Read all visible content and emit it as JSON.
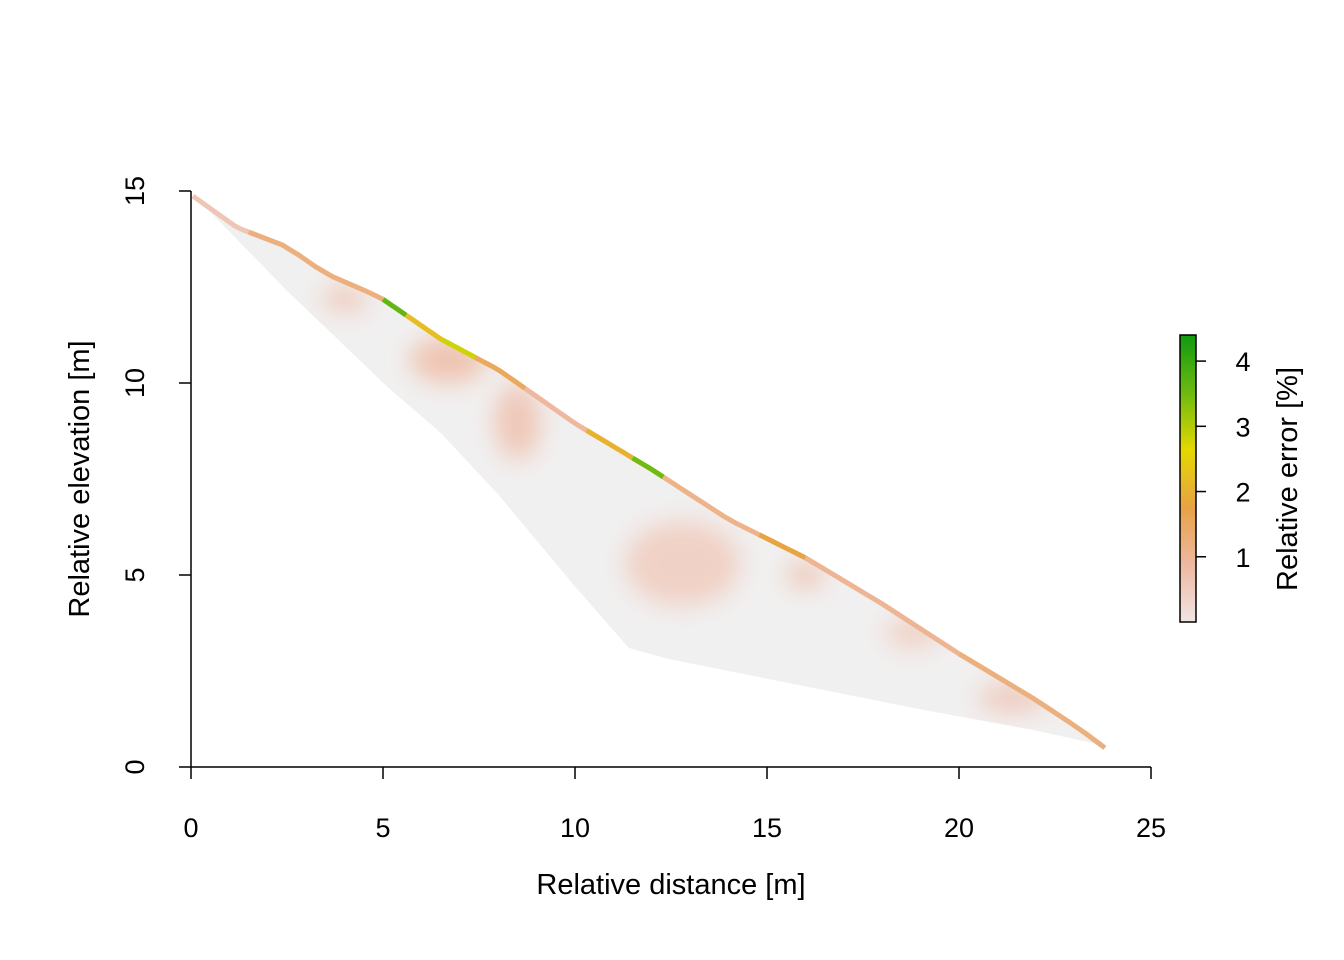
{
  "chart_data": {
    "type": "heatmap",
    "xlabel": "Relative distance [m]",
    "ylabel": "Relative elevation [m]",
    "xlim": [
      0,
      25
    ],
    "ylim": [
      0,
      15
    ],
    "x_ticks": [
      "0",
      "5",
      "10",
      "15",
      "20",
      "25"
    ],
    "y_ticks": [
      "0",
      "5",
      "10",
      "15"
    ],
    "colorbar": {
      "label": "Relative error [%]",
      "range": [
        0,
        4.4
      ],
      "ticks": [
        "1",
        "2",
        "3",
        "4"
      ],
      "colors": [
        "#f2e4e4",
        "#eeb8a0",
        "#e8a244",
        "#e4d800",
        "#6cba10",
        "#0f9a0f"
      ]
    },
    "domain": {
      "top_surface": [
        [
          0.05,
          14.92
        ],
        [
          1.2,
          14.1
        ],
        [
          2.5,
          13.6
        ],
        [
          3.5,
          12.9
        ],
        [
          4.9,
          12.3
        ],
        [
          6.5,
          11.2
        ],
        [
          8.0,
          10.4
        ],
        [
          10.0,
          9.0
        ],
        [
          12.0,
          7.8
        ],
        [
          14.0,
          6.5
        ],
        [
          16.0,
          5.5
        ],
        [
          18.0,
          4.3
        ],
        [
          20.0,
          3.0
        ],
        [
          22.0,
          1.8
        ],
        [
          23.2,
          1.0
        ],
        [
          23.8,
          0.55
        ]
      ],
      "bottom_boundary": [
        [
          23.8,
          0.55
        ],
        [
          22.0,
          0.95
        ],
        [
          19.0,
          1.5
        ],
        [
          15.0,
          2.3
        ],
        [
          12.5,
          2.8
        ],
        [
          11.4,
          3.1
        ],
        [
          10.0,
          4.7
        ],
        [
          8.0,
          7.1
        ],
        [
          6.5,
          8.7
        ],
        [
          5.0,
          10.0
        ],
        [
          4.8,
          10.2
        ],
        [
          2.5,
          12.4
        ],
        [
          0.05,
          14.92
        ]
      ]
    },
    "hotspots": [
      {
        "x": 4.0,
        "y": 12.2,
        "rx": 0.6,
        "ry": 0.35,
        "value": 0.6
      },
      {
        "x": 6.7,
        "y": 10.6,
        "rx": 1.0,
        "ry": 0.6,
        "value": 0.8
      },
      {
        "x": 8.5,
        "y": 9.0,
        "rx": 0.6,
        "ry": 1.0,
        "value": 0.7
      },
      {
        "x": 12.8,
        "y": 5.3,
        "rx": 1.5,
        "ry": 1.1,
        "value": 0.5
      },
      {
        "x": 16.0,
        "y": 5.0,
        "rx": 0.5,
        "ry": 0.35,
        "value": 0.7
      },
      {
        "x": 18.8,
        "y": 3.5,
        "rx": 0.7,
        "ry": 0.4,
        "value": 0.5
      },
      {
        "x": 21.4,
        "y": 1.8,
        "rx": 0.9,
        "ry": 0.4,
        "value": 0.6
      }
    ],
    "edge_values": [
      {
        "x1": 0.05,
        "x2": 1.5,
        "value": 0.6
      },
      {
        "x1": 1.5,
        "x2": 5.0,
        "value": 1.2
      },
      {
        "x1": 5.0,
        "x2": 5.6,
        "value": 3.6
      },
      {
        "x1": 5.6,
        "x2": 6.5,
        "value": 2.2
      },
      {
        "x1": 6.5,
        "x2": 7.4,
        "value": 2.8
      },
      {
        "x1": 7.4,
        "x2": 8.7,
        "value": 1.5
      },
      {
        "x1": 8.7,
        "x2": 10.3,
        "value": 0.9
      },
      {
        "x1": 10.3,
        "x2": 11.5,
        "value": 2.0
      },
      {
        "x1": 11.5,
        "x2": 12.3,
        "value": 3.5
      },
      {
        "x1": 12.3,
        "x2": 14.8,
        "value": 1.1
      },
      {
        "x1": 14.8,
        "x2": 16.0,
        "value": 1.8
      },
      {
        "x1": 16.0,
        "x2": 20.0,
        "value": 1.0
      },
      {
        "x1": 20.0,
        "x2": 23.8,
        "value": 1.2
      }
    ]
  }
}
